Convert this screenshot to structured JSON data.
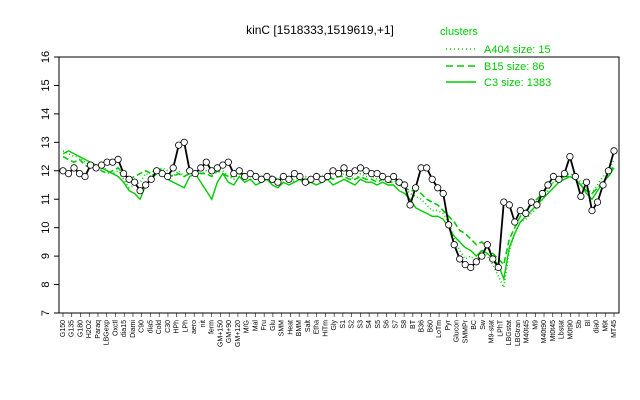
{
  "chart_data": {
    "type": "line",
    "title": "kinC [1518333,1519619,+1]",
    "xlabel": "",
    "ylabel": "",
    "ylim": [
      7,
      16
    ],
    "y_ticks": [
      7,
      8,
      9,
      10,
      11,
      12,
      13,
      14,
      15,
      16
    ],
    "x_tick_labels": [
      "G150",
      "G135",
      "G180",
      "H2O2",
      "Paraq",
      "LBGexp",
      "Oxctl",
      "dia15",
      "Diami",
      "C90",
      "dia5",
      "Cold",
      "C30",
      "HPh",
      "LPh",
      "aero",
      "nit",
      "ferm",
      "GM+150",
      "GM+90",
      "GM+120",
      "M/G",
      "Mal",
      "Fru",
      "Glu",
      "SMM",
      "Heat",
      "BMM",
      "Salt",
      "Etha",
      "HiTm",
      "Gly",
      "S1",
      "S2",
      "S3",
      "S4",
      "S5",
      "S6",
      "S7",
      "S8",
      "BT",
      "B36",
      "B60",
      "LoTm",
      "Pyr",
      "Glucon",
      "SMMPr",
      "BC",
      "Sw",
      "M9-stat",
      "LPhT",
      "LBGstat",
      "LBGtran",
      "M40t45",
      "M9",
      "M40t90",
      "Mt0t45",
      "Lbstat",
      "M0t90",
      "Sb",
      "Bl",
      "dia0",
      "M9t",
      "MT45"
    ],
    "legend": {
      "title": "clusters",
      "position": "top-right",
      "entries": [
        {
          "label": "A404 size: 15",
          "style": "dotted"
        },
        {
          "label": "B15 size: 86",
          "style": "dashed"
        },
        {
          "label": "C3 size: 1383",
          "style": "solid"
        }
      ]
    },
    "n_positions": 101,
    "gene_values": [
      12.0,
      11.9,
      12.1,
      11.9,
      11.8,
      12.2,
      12.1,
      12.2,
      12.3,
      12.3,
      12.4,
      11.9,
      11.7,
      11.6,
      11.3,
      11.5,
      11.7,
      12.0,
      11.9,
      11.8,
      12.1,
      12.9,
      13.0,
      12.0,
      11.9,
      12.1,
      12.3,
      12.0,
      12.1,
      12.2,
      12.3,
      11.9,
      12.0,
      11.8,
      11.9,
      11.8,
      11.7,
      11.8,
      11.7,
      11.6,
      11.8,
      11.7,
      11.9,
      11.8,
      11.6,
      11.7,
      11.8,
      11.7,
      11.8,
      12.0,
      11.9,
      12.1,
      11.9,
      12.0,
      12.1,
      12.0,
      11.9,
      11.9,
      11.8,
      11.7,
      11.8,
      11.6,
      11.5,
      10.8,
      11.4,
      12.1,
      12.1,
      11.7,
      11.4,
      11.2,
      10.1,
      9.4,
      8.9,
      8.7,
      8.6,
      8.8,
      9.0,
      9.4,
      8.9,
      8.6,
      10.9,
      10.8,
      10.2,
      10.6,
      10.5,
      10.9,
      10.8,
      11.2,
      11.5,
      11.8,
      11.7,
      11.9,
      12.5,
      11.8,
      11.1,
      11.6,
      10.6,
      10.9,
      11.5,
      12.0,
      12.7
    ],
    "series": [
      {
        "name": "A404",
        "style": "dotted",
        "values": [
          12.7,
          12.6,
          12.5,
          12.5,
          12.3,
          12.2,
          12.1,
          12.2,
          12.0,
          11.9,
          12.0,
          11.7,
          11.4,
          11.5,
          11.6,
          11.9,
          11.8,
          12.0,
          12.1,
          12.0,
          11.8,
          12.0,
          11.8,
          11.9,
          12.0,
          11.9,
          12.0,
          11.9,
          12.1,
          12.0,
          11.8,
          11.7,
          11.9,
          11.8,
          11.9,
          11.7,
          11.8,
          11.9,
          11.8,
          11.6,
          11.7,
          11.8,
          11.6,
          11.7,
          11.8,
          11.7,
          11.9,
          11.8,
          11.9,
          11.7,
          11.8,
          11.9,
          11.8,
          11.7,
          11.9,
          11.8,
          11.8,
          11.7,
          11.8,
          11.7,
          11.7,
          11.5,
          11.4,
          11.2,
          11.1,
          11.0,
          10.8,
          10.6,
          10.6,
          10.5,
          10.2,
          9.6,
          9.2,
          8.9,
          9.0,
          8.8,
          9.2,
          9.0,
          8.7,
          8.3,
          7.9,
          9.2,
          9.8,
          10.2,
          10.3,
          10.5,
          10.7,
          11.0,
          11.3,
          11.6,
          11.7,
          11.8,
          11.9,
          11.8,
          11.6,
          11.4,
          11.2,
          11.5,
          11.8,
          12.0,
          12.4
        ]
      },
      {
        "name": "B15",
        "style": "dashed",
        "values": [
          12.5,
          12.4,
          12.3,
          12.4,
          12.2,
          12.1,
          12.2,
          12.0,
          11.9,
          12.0,
          12.1,
          11.9,
          11.7,
          11.8,
          11.9,
          12.0,
          11.9,
          12.1,
          12.0,
          11.9,
          11.8,
          11.9,
          11.8,
          11.9,
          12.0,
          11.9,
          11.9,
          11.8,
          12.0,
          11.9,
          11.8,
          11.8,
          11.9,
          11.8,
          11.9,
          11.8,
          11.8,
          11.7,
          11.8,
          11.7,
          11.8,
          11.7,
          11.7,
          11.8,
          11.7,
          11.7,
          11.8,
          11.7,
          11.8,
          11.7,
          11.8,
          11.8,
          11.7,
          11.7,
          11.8,
          11.7,
          11.7,
          11.6,
          11.7,
          11.6,
          11.6,
          11.5,
          11.4,
          11.3,
          11.3,
          11.2,
          11.0,
          10.9,
          10.8,
          10.6,
          10.4,
          10.2,
          9.9,
          9.8,
          9.6,
          9.4,
          9.5,
          9.3,
          9.1,
          8.9,
          8.7,
          9.6,
          10.0,
          10.4,
          10.6,
          10.8,
          11.0,
          11.2,
          11.4,
          11.6,
          11.7,
          11.8,
          11.8,
          11.7,
          11.5,
          11.3,
          11.2,
          11.4,
          11.6,
          11.9,
          12.2
        ]
      },
      {
        "name": "C3",
        "style": "solid",
        "values": [
          12.6,
          12.7,
          12.6,
          12.5,
          12.4,
          12.3,
          12.2,
          12.1,
          12.0,
          11.9,
          11.8,
          11.6,
          11.3,
          11.2,
          11.0,
          11.5,
          11.7,
          11.9,
          12.0,
          11.7,
          11.6,
          11.5,
          11.4,
          11.8,
          11.9,
          11.6,
          11.3,
          11.0,
          11.6,
          11.9,
          11.6,
          11.5,
          11.8,
          11.6,
          11.7,
          11.5,
          11.6,
          11.7,
          11.5,
          11.4,
          11.6,
          11.5,
          11.6,
          11.7,
          11.5,
          11.6,
          11.5,
          11.6,
          11.7,
          11.5,
          11.6,
          11.7,
          11.6,
          11.5,
          11.7,
          11.6,
          11.6,
          11.5,
          11.6,
          11.5,
          11.5,
          11.3,
          11.2,
          11.0,
          10.7,
          10.6,
          10.5,
          10.4,
          10.4,
          10.3,
          10.0,
          9.7,
          9.5,
          9.3,
          9.2,
          9.0,
          9.2,
          9.1,
          8.9,
          8.7,
          8.2,
          9.3,
          9.8,
          10.2,
          10.4,
          10.6,
          10.8,
          11.0,
          11.2,
          11.4,
          11.6,
          11.7,
          11.8,
          11.7,
          11.5,
          11.2,
          11.0,
          11.3,
          11.6,
          11.8,
          12.1
        ]
      }
    ]
  }
}
